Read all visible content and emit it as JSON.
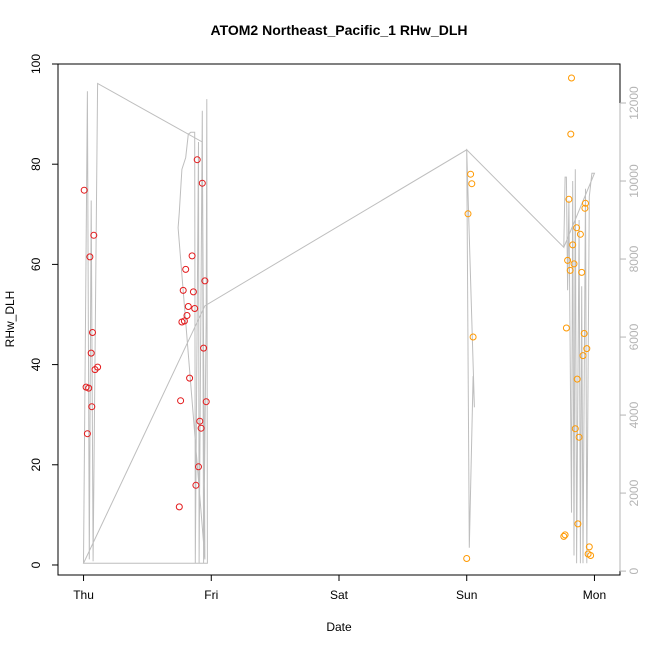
{
  "chart_data": {
    "type": "scatter",
    "title": "ATOM2 Northeast_Pacific_1 RHw_DLH",
    "xlabel": "Date",
    "ylabel": "RHw_DLH",
    "x_ticks": [
      "Thu",
      "Fri",
      "Sat",
      "Sun",
      "Mon"
    ],
    "x_tick_values": [
      0,
      1,
      2,
      3,
      4
    ],
    "x_unit": "days from Thu 00:00",
    "xlim": [
      -0.2,
      4.2
    ],
    "ylim": [
      -2,
      100
    ],
    "y_ticks": [
      0,
      20,
      40,
      60,
      80,
      100
    ],
    "y2lim": [
      -100,
      13000
    ],
    "y2_ticks": [
      0,
      2000,
      4000,
      6000,
      8000,
      10000,
      12000
    ],
    "grid": false,
    "legend": "none",
    "colors": {
      "series1": "#e31a1c",
      "series2": "#ff9900",
      "altitude": "#bebebe"
    },
    "series": [
      {
        "color": "#e31a1c",
        "points": [
          [
            0.005,
            74.8
          ],
          [
            0.02,
            35.5
          ],
          [
            0.03,
            26.2
          ],
          [
            0.04,
            35.3
          ],
          [
            0.05,
            61.5
          ],
          [
            0.06,
            42.3
          ],
          [
            0.065,
            31.6
          ],
          [
            0.07,
            46.4
          ],
          [
            0.08,
            65.8
          ],
          [
            0.09,
            39.0
          ],
          [
            0.11,
            39.5
          ],
          [
            0.75,
            11.6
          ],
          [
            0.76,
            32.8
          ],
          [
            0.77,
            48.5
          ],
          [
            0.78,
            54.8
          ],
          [
            0.79,
            48.7
          ],
          [
            0.8,
            59.0
          ],
          [
            0.81,
            49.8
          ],
          [
            0.82,
            51.6
          ],
          [
            0.83,
            37.3
          ],
          [
            0.85,
            61.7
          ],
          [
            0.86,
            54.5
          ],
          [
            0.87,
            51.2
          ],
          [
            0.88,
            15.9
          ],
          [
            0.89,
            80.9
          ],
          [
            0.9,
            19.6
          ],
          [
            0.91,
            28.7
          ],
          [
            0.92,
            27.3
          ],
          [
            0.93,
            76.2
          ],
          [
            0.94,
            43.3
          ],
          [
            0.95,
            56.7
          ],
          [
            0.96,
            32.6
          ]
        ]
      },
      {
        "color": "#ff9900",
        "points": [
          [
            3.0,
            1.3
          ],
          [
            3.01,
            70.1
          ],
          [
            3.03,
            78.0
          ],
          [
            3.04,
            76.1
          ],
          [
            3.05,
            45.5
          ],
          [
            3.76,
            5.7
          ],
          [
            3.77,
            6.0
          ],
          [
            3.78,
            47.3
          ],
          [
            3.79,
            60.8
          ],
          [
            3.8,
            73.0
          ],
          [
            3.81,
            58.8
          ],
          [
            3.83,
            63.9
          ],
          [
            3.84,
            60.1
          ],
          [
            3.85,
            27.2
          ],
          [
            3.86,
            67.3
          ],
          [
            3.865,
            37.1
          ],
          [
            3.87,
            8.2
          ],
          [
            3.88,
            25.5
          ],
          [
            3.89,
            66.0
          ],
          [
            3.9,
            58.4
          ],
          [
            3.91,
            41.8
          ],
          [
            3.92,
            46.2
          ],
          [
            3.925,
            71.2
          ],
          [
            3.93,
            72.2
          ],
          [
            3.94,
            43.2
          ],
          [
            3.95,
            2.2
          ],
          [
            3.96,
            3.6
          ],
          [
            3.97,
            1.9
          ],
          [
            3.82,
            97.2
          ],
          [
            3.815,
            86.0
          ]
        ]
      }
    ],
    "altitude_line": {
      "axis": "right",
      "points": [
        [
          0.0,
          200
        ],
        [
          0.03,
          12300
        ],
        [
          0.045,
          300
        ],
        [
          0.06,
          9500
        ],
        [
          0.075,
          250
        ],
        [
          0.11,
          12500
        ],
        [
          0.93,
          11000
        ],
        [
          0.95,
          300
        ],
        [
          0.74,
          8800
        ],
        [
          0.75,
          9200
        ],
        [
          0.77,
          10300
        ],
        [
          0.8,
          10600
        ],
        [
          0.82,
          11200
        ],
        [
          0.84,
          11250
        ],
        [
          0.87,
          11250
        ],
        [
          0.875,
          200
        ],
        [
          0.9,
          11000
        ],
        [
          0.905,
          200
        ],
        [
          0.93,
          11800
        ],
        [
          0.94,
          200
        ],
        [
          0.96,
          6500
        ],
        [
          0.965,
          12100
        ],
        [
          0.97,
          200
        ],
        [
          0.0,
          200
        ],
        [
          0.95,
          6800
        ],
        [
          3.0,
          10800
        ],
        [
          3.02,
          600
        ],
        [
          3.05,
          5000
        ],
        [
          3.06,
          4200
        ],
        [
          3.0,
          10800
        ],
        [
          3.76,
          8300
        ],
        [
          3.77,
          10100
        ],
        [
          3.78,
          10100
        ],
        [
          3.79,
          7200
        ],
        [
          3.8,
          9500
        ],
        [
          3.82,
          1500
        ],
        [
          3.83,
          10000
        ],
        [
          3.84,
          400
        ],
        [
          3.85,
          10300
        ],
        [
          3.86,
          200
        ],
        [
          3.88,
          9000
        ],
        [
          3.89,
          200
        ],
        [
          3.9,
          7300
        ],
        [
          3.91,
          200
        ],
        [
          3.93,
          9800
        ],
        [
          3.94,
          200
        ],
        [
          3.96,
          9600
        ],
        [
          3.98,
          10200
        ],
        [
          4.0,
          10200
        ],
        [
          3.76,
          8300
        ]
      ]
    }
  }
}
